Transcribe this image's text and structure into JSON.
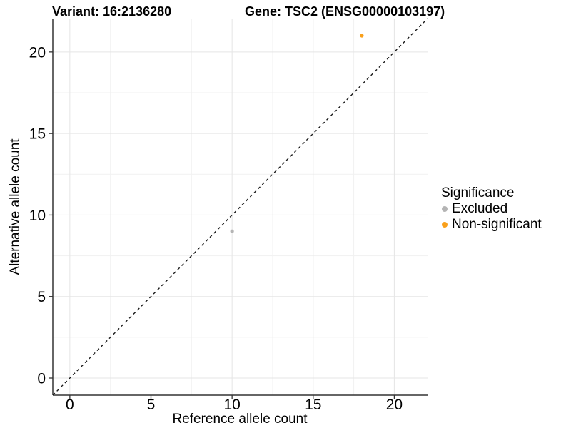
{
  "titles": {
    "variant": "Variant: 16:2136280",
    "gene": "Gene: TSC2 (ENSG00000103197)"
  },
  "chart_data": {
    "type": "scatter",
    "xlabel": "Reference allele count",
    "ylabel": "Alternative allele count",
    "xlim": [
      -1.05,
      22.05
    ],
    "ylim": [
      -1.05,
      22.05
    ],
    "x_ticks": {
      "values": [
        0,
        5,
        10,
        15,
        20
      ],
      "labels": [
        "0",
        "5",
        "10",
        "15",
        "20"
      ]
    },
    "y_ticks": {
      "values": [
        0,
        5,
        10,
        15,
        20
      ],
      "labels": [
        "0",
        "5",
        "10",
        "15",
        "20"
      ]
    },
    "x_minor_gridlines": [
      2.5,
      7.5,
      12.5,
      17.5
    ],
    "y_minor_gridlines": [
      2.5,
      7.5,
      12.5,
      17.5
    ],
    "grid": "major+minor",
    "reference_line": {
      "type": "identity",
      "slope": 1,
      "intercept": 0,
      "style": "dashed",
      "color": "#1a1a1a"
    },
    "series": [
      {
        "name": "Excluded",
        "color": "#b4b4b4",
        "points": [
          {
            "x": 10,
            "y": 9
          }
        ]
      },
      {
        "name": "Non-significant",
        "color": "#f9a01b",
        "points": [
          {
            "x": 18,
            "y": 21
          }
        ]
      }
    ],
    "legend": {
      "title": "Significance",
      "position": "right"
    },
    "style": {
      "major_grid_color": "#e5e5e5",
      "minor_grid_color": "#f1f1f1",
      "axis_line_color": "#333333",
      "point_radius": 2.6,
      "background": "#ffffff"
    }
  }
}
